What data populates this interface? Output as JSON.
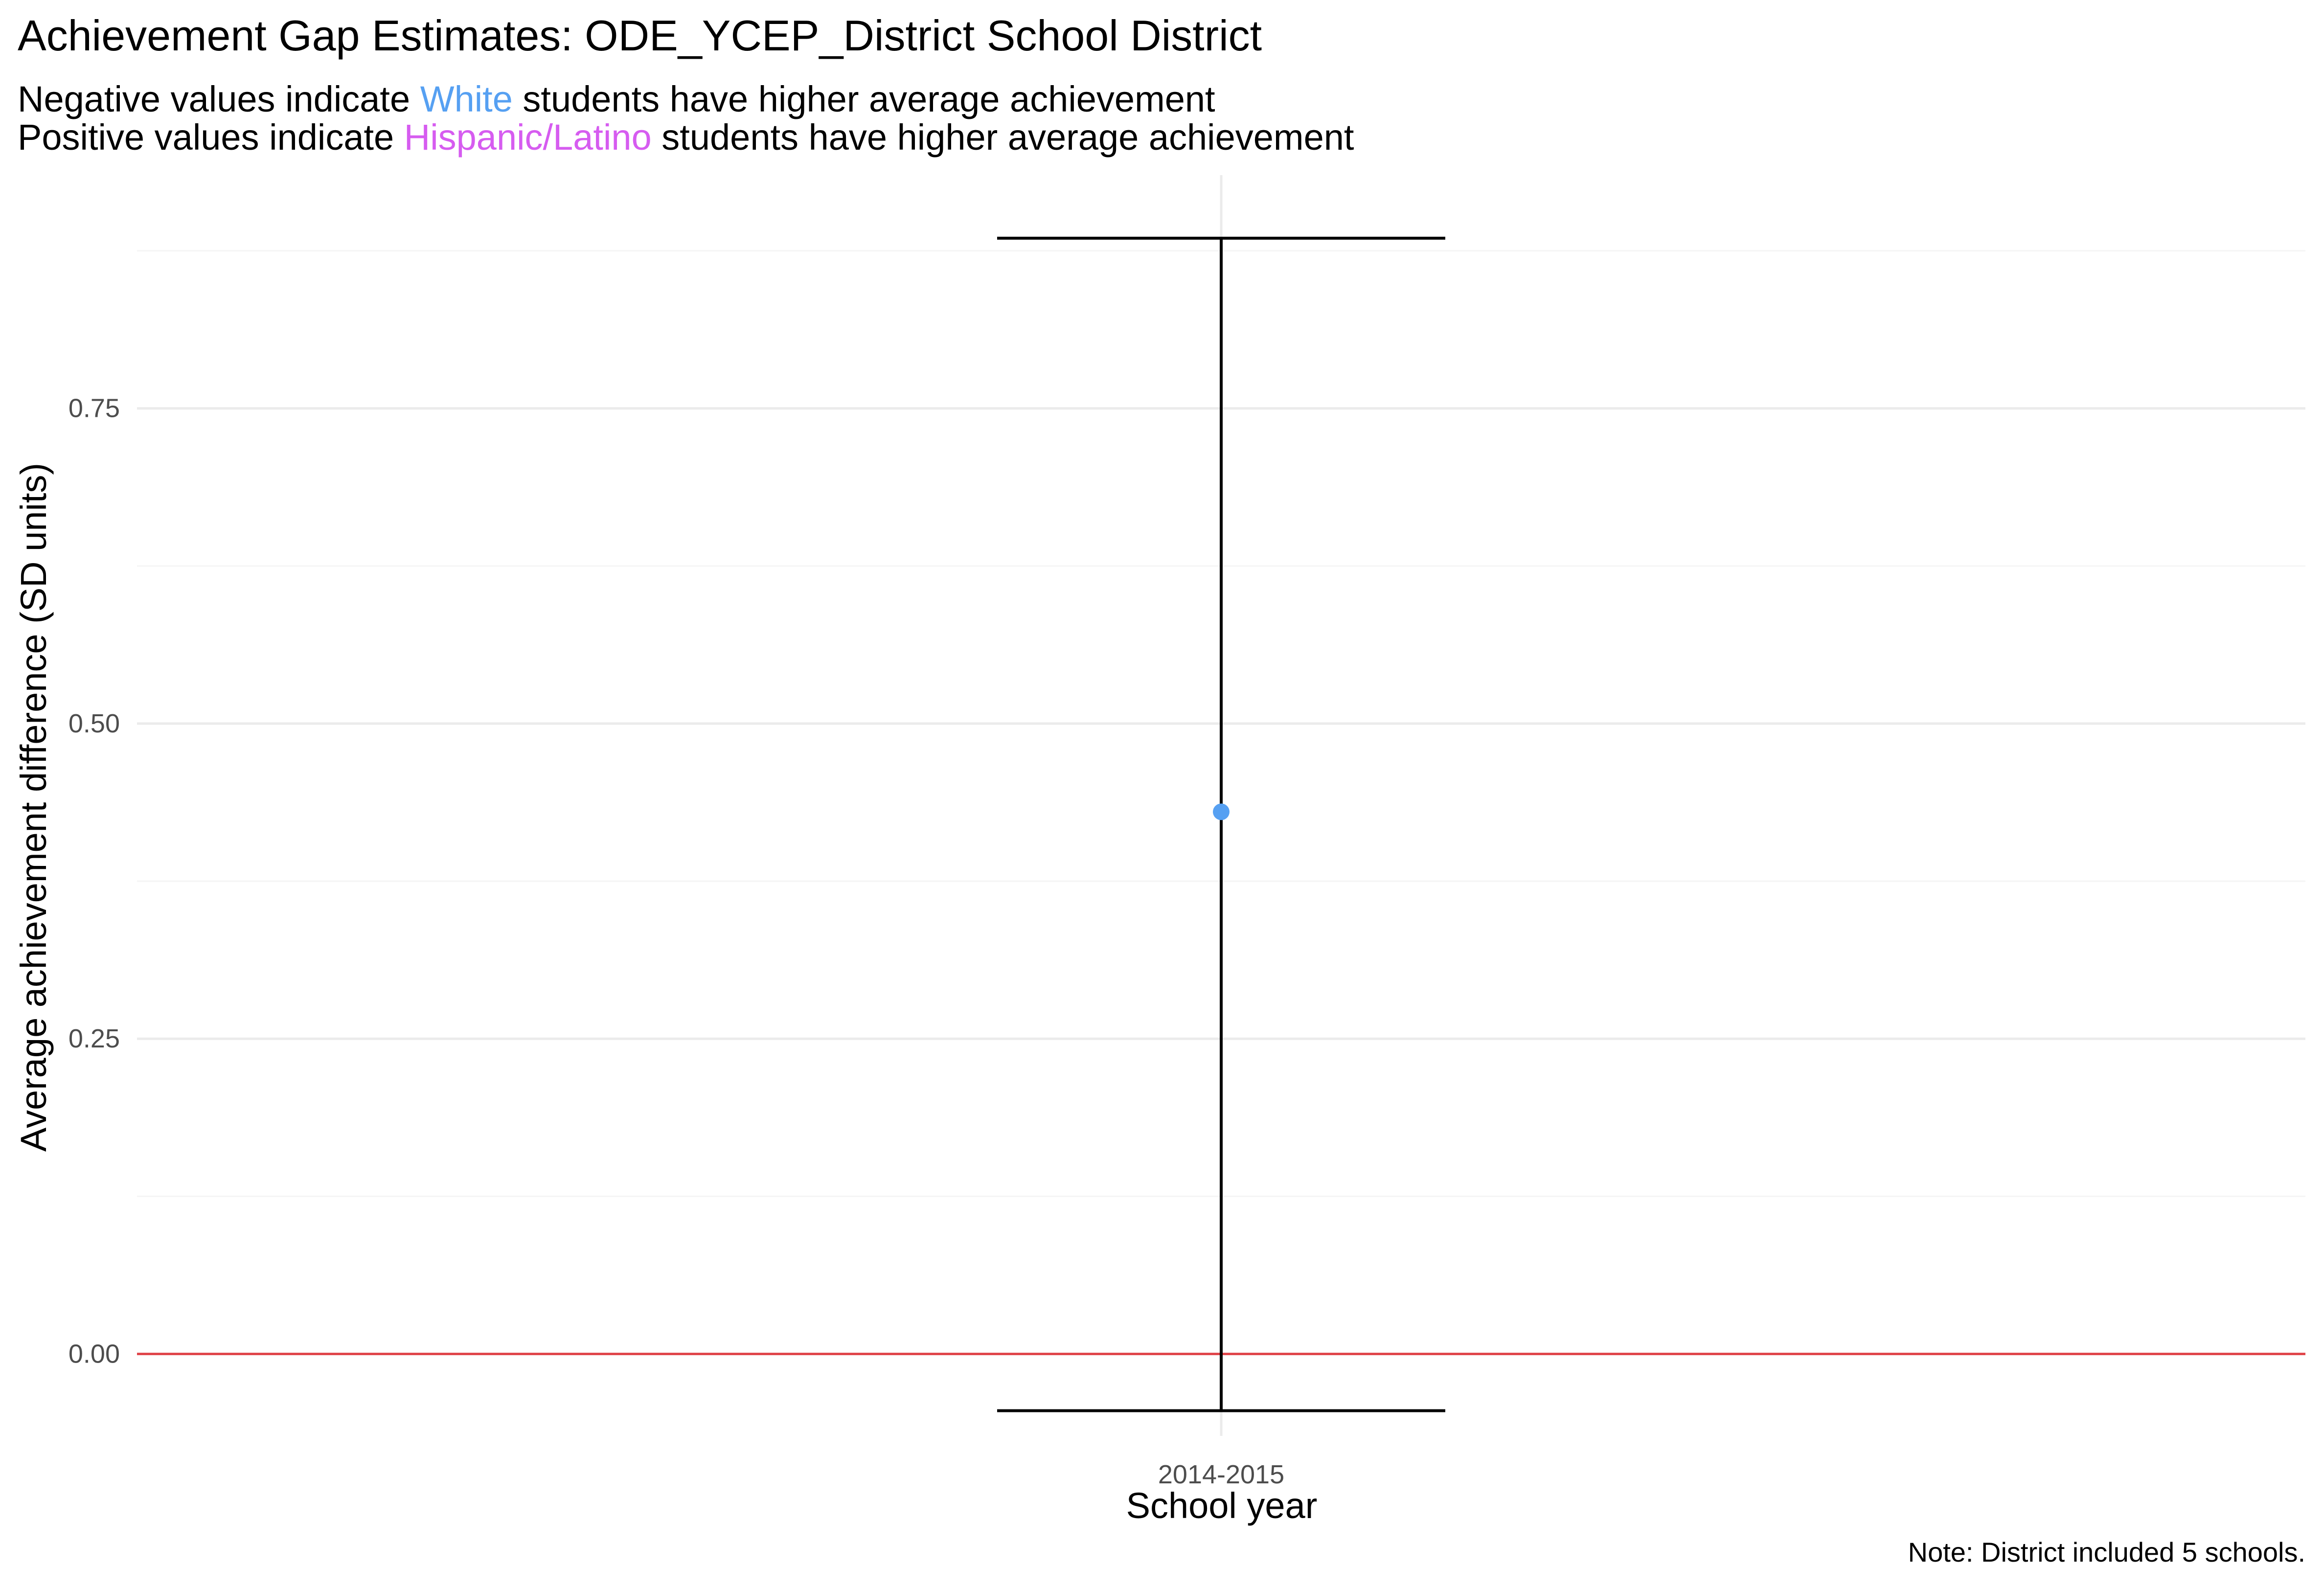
{
  "title": "Achievement Gap Estimates: ODE_YCEP_District  School District",
  "subtitle": {
    "line1": {
      "before": "Negative values indicate ",
      "highlight": "White",
      "after": " students have higher average achievement",
      "highlight_color": "#56A0F2"
    },
    "line2": {
      "before": "Positive values indicate ",
      "highlight": "Hispanic/Latino",
      "after": " students have higher average achievement",
      "highlight_color": "#D65CF0"
    }
  },
  "caption": "Note: District included 5 schools.",
  "colors": {
    "point": "#56A0F2",
    "errorbar": "#000000",
    "reference_line": "#E0474C",
    "grid_major": "#EBEBEB",
    "grid_minor": "#F5F5F5"
  },
  "chart_data": {
    "type": "scatter",
    "title": "Achievement Gap Estimates: ODE_YCEP_District  School District",
    "xlabel": "School year",
    "ylabel": "Average achievement difference (SD units)",
    "categories": [
      "2014-2015"
    ],
    "series": [
      {
        "values": [
          0.43
        ],
        "lower": [
          -0.045
        ],
        "upper": [
          0.885
        ]
      }
    ],
    "reference_line": 0.0,
    "yticks": [
      0.0,
      0.25,
      0.5,
      0.75
    ],
    "ytick_labels": [
      "0.00",
      "0.25",
      "0.50",
      "0.75"
    ],
    "ylim": [
      -0.065,
      0.935
    ],
    "grid": true,
    "legend": "none"
  }
}
